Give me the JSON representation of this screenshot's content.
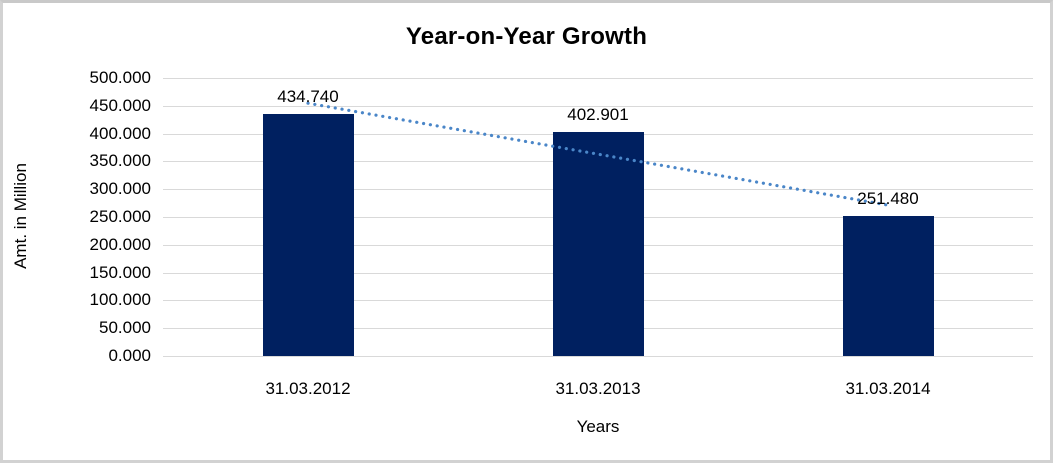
{
  "window": {
    "background": "#ffffff",
    "border_color": "#d2d2d2"
  },
  "chart_data": {
    "type": "bar",
    "title": "Year-on-Year Growth",
    "xlabel": "Years",
    "ylabel": "Amt. in Million",
    "categories": [
      "31.03.2012",
      "31.03.2013",
      "31.03.2014"
    ],
    "values": [
      434.74,
      402.901,
      251.48
    ],
    "data_labels": [
      "434.740",
      "402.901",
      "251.480"
    ],
    "y_ticks": [
      {
        "value": 500,
        "label": "500.000"
      },
      {
        "value": 450,
        "label": "450.000"
      },
      {
        "value": 400,
        "label": "400.000"
      },
      {
        "value": 350,
        "label": "350.000"
      },
      {
        "value": 300,
        "label": "300.000"
      },
      {
        "value": 250,
        "label": "250.000"
      },
      {
        "value": 200,
        "label": "200.000"
      },
      {
        "value": 150,
        "label": "150.000"
      },
      {
        "value": 100,
        "label": "100.000"
      },
      {
        "value": 50,
        "label": "50.000"
      },
      {
        "value": 0,
        "label": "0.000"
      }
    ],
    "ylim": [
      0,
      500
    ],
    "grid": "horizontal-only",
    "legend": "none",
    "bar_color": "#002060",
    "gridline_color": "#d9d9d9",
    "trendline": {
      "style": "dotted",
      "color": "#4a86c8",
      "start_value": 454.7,
      "end_value": 271.4
    }
  }
}
